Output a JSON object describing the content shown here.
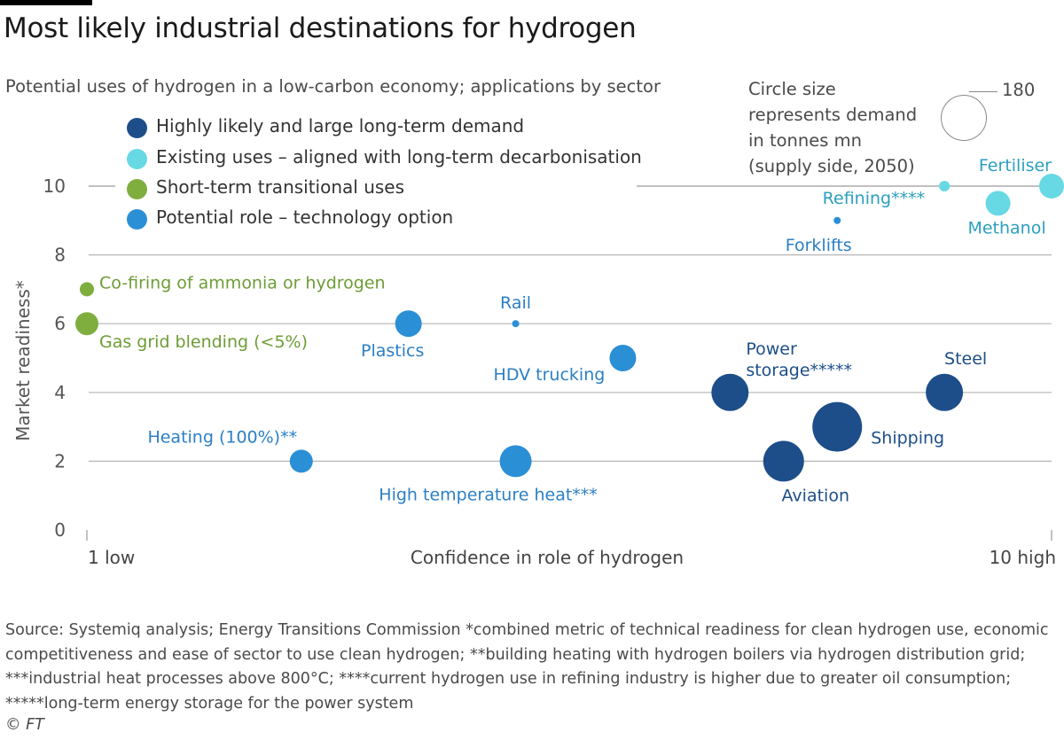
{
  "title": "Most likely industrial destinations for hydrogen",
  "subtitle": "Potential uses of hydrogen in a low-carbon economy; applications by sector",
  "legend": [
    {
      "label": "Highly likely and large long-term demand",
      "color": "#1d4e89"
    },
    {
      "label": "Existing uses  – aligned with long-term decarbonisation",
      "color": "#67d9e5"
    },
    {
      "label": "Short-term transitional uses",
      "color": "#7fae3f"
    },
    {
      "label": "Potential role  – technology option",
      "color": "#2b8fd6"
    }
  ],
  "size_legend": {
    "lines": [
      "Circle size",
      "represents demand",
      "in tonnes mn",
      "(supply side, 2050)"
    ],
    "value": "180"
  },
  "source": "Source: Systemiq analysis; Energy Transitions Commission   *combined metric of technical readiness for clean hydrogen use, economic competitiveness and ease of sector to use clean hydrogen; **building heating with hydrogen boilers via hydrogen distribution grid; ***industrial heat processes above 800°C; ****current hydrogen use in refining industry is higher due to greater oil consumption; *****long-term energy storage for the power system",
  "credit": "© FT",
  "chart_data": {
    "type": "scatter",
    "title": "Most likely industrial destinations for hydrogen",
    "xlabel": "Confidence in role of hydrogen",
    "ylabel": "Market readiness*",
    "x_tick_labels": [
      "1 low",
      "10 high"
    ],
    "xlim": [
      1,
      10
    ],
    "ylim": [
      0,
      10
    ],
    "yticks": [
      0,
      2,
      4,
      6,
      8,
      10
    ],
    "grid": true,
    "size_reference": {
      "label": "180",
      "demand_mt": 180
    },
    "categories": {
      "highly_likely": "#1d4e89",
      "existing": "#67d9e5",
      "transitional": "#7fae3f",
      "potential": "#2b8fd6"
    },
    "points": [
      {
        "label": "Fertiliser",
        "x": 10,
        "y": 10,
        "size": 14,
        "category": "existing"
      },
      {
        "label": "Refining****",
        "x": 9.0,
        "y": 10,
        "size": 6,
        "category": "existing"
      },
      {
        "label": "Methanol",
        "x": 9.5,
        "y": 9.5,
        "size": 14,
        "category": "existing"
      },
      {
        "label": "Forklifts",
        "x": 8.0,
        "y": 9,
        "size": 4,
        "category": "potential"
      },
      {
        "label": "Co-firing of ammonia or hydrogen",
        "x": 1.0,
        "y": 7,
        "size": 8,
        "category": "transitional"
      },
      {
        "label": "Gas grid blending (<5%)",
        "x": 1.0,
        "y": 6,
        "size": 13,
        "category": "transitional"
      },
      {
        "label": "Plastics",
        "x": 4.0,
        "y": 6,
        "size": 15,
        "category": "potential"
      },
      {
        "label": "Rail",
        "x": 5.0,
        "y": 6,
        "size": 4,
        "category": "potential"
      },
      {
        "label": "HDV trucking",
        "x": 6.0,
        "y": 5,
        "size": 15,
        "category": "potential"
      },
      {
        "label": "Power storage*****",
        "x": 7.0,
        "y": 4,
        "size": 21,
        "category": "highly_likely"
      },
      {
        "label": "Steel",
        "x": 9.0,
        "y": 4,
        "size": 21,
        "category": "highly_likely"
      },
      {
        "label": "Shipping",
        "x": 8.0,
        "y": 3,
        "size": 28,
        "category": "highly_likely"
      },
      {
        "label": "Aviation",
        "x": 7.5,
        "y": 2,
        "size": 23,
        "category": "highly_likely"
      },
      {
        "label": "Heating (100%)**",
        "x": 3.0,
        "y": 2,
        "size": 13,
        "category": "potential"
      },
      {
        "label": "High temperature heat***",
        "x": 5.0,
        "y": 2,
        "size": 18,
        "category": "potential"
      }
    ]
  }
}
